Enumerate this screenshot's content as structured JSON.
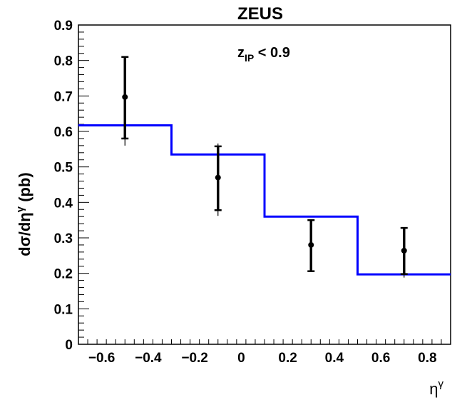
{
  "chart_data": {
    "type": "line",
    "title": "ZEUS",
    "annotation": {
      "base": "z",
      "sub": "IP",
      "rest": " < 0.9"
    },
    "ylabel": {
      "main": "dσ/dη",
      "sup": "γ",
      "unit": " (pb)"
    },
    "xlabel": {
      "main": "η",
      "sup": "γ"
    },
    "xlim": [
      -0.7,
      0.9
    ],
    "ylim": [
      0,
      0.9
    ],
    "x_ticks": [
      "−0.6",
      "−0.4",
      "−0.2",
      "0",
      "0.2",
      "0.4",
      "0.6",
      "0.8"
    ],
    "x_tick_values": [
      -0.6,
      -0.4,
      -0.2,
      0,
      0.2,
      0.4,
      0.6,
      0.8
    ],
    "y_ticks": [
      "0",
      "0.1",
      "0.2",
      "0.3",
      "0.4",
      "0.5",
      "0.6",
      "0.7",
      "0.8",
      "0.9"
    ],
    "y_tick_values": [
      0,
      0.1,
      0.2,
      0.3,
      0.4,
      0.5,
      0.6,
      0.7,
      0.8,
      0.9
    ],
    "series": [
      {
        "kind": "data-points",
        "x": [
          -0.5,
          -0.1,
          0.3,
          0.7
        ],
        "y": [
          0.697,
          0.47,
          0.28,
          0.264
        ],
        "stat_err_low": [
          0.58,
          0.378,
          0.206,
          0.198
        ],
        "stat_err_high": [
          0.81,
          0.558,
          0.35,
          0.328
        ],
        "total_err_low": [
          0.56,
          0.362,
          0.204,
          0.188
        ],
        "total_err_high": [
          0.81,
          0.566,
          0.352,
          0.33
        ],
        "color": "#000000"
      },
      {
        "kind": "step-histogram",
        "bin_edges": [
          -0.7,
          -0.3,
          0.1,
          0.5,
          0.9
        ],
        "values": [
          0.617,
          0.535,
          0.36,
          0.197
        ],
        "color": "#0000ff"
      }
    ]
  }
}
